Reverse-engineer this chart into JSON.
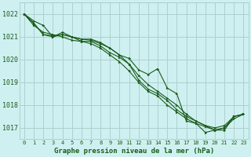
{
  "title": "Graphe pression niveau de la mer (hPa)",
  "bg_color": "#cff0f0",
  "grid_color": "#aed0d0",
  "line_color": "#1a5c1a",
  "xlim": [
    -0.5,
    23.5
  ],
  "ylim": [
    1016.5,
    1022.5
  ],
  "yticks": [
    1017,
    1018,
    1019,
    1020,
    1021,
    1022
  ],
  "xticks": [
    0,
    1,
    2,
    3,
    4,
    5,
    6,
    7,
    8,
    9,
    10,
    11,
    12,
    13,
    14,
    15,
    16,
    17,
    18,
    19,
    20,
    21,
    22,
    23
  ],
  "series": [
    [
      1022.0,
      1021.7,
      1021.5,
      1021.0,
      1021.1,
      1021.0,
      1020.9,
      1020.85,
      1020.7,
      1020.5,
      1020.2,
      1020.05,
      1019.55,
      1019.35,
      1019.6,
      1018.75,
      1018.5,
      1017.3,
      1017.2,
      1017.05,
      1016.9,
      1016.9,
      1017.5,
      1017.6
    ],
    [
      1022.0,
      1021.6,
      1021.1,
      1021.0,
      1021.2,
      1021.0,
      1020.9,
      1020.9,
      1020.75,
      1020.5,
      1020.2,
      1019.8,
      1019.1,
      1018.7,
      1018.5,
      1018.2,
      1017.8,
      1017.5,
      1017.3,
      1017.1,
      1017.0,
      1017.1,
      1017.5,
      1017.6
    ],
    [
      1022.0,
      1021.5,
      1021.2,
      1021.1,
      1021.0,
      1020.85,
      1020.8,
      1020.7,
      1020.5,
      1020.2,
      1019.9,
      1019.5,
      1019.0,
      1018.6,
      1018.4,
      1018.0,
      1017.7,
      1017.4,
      1017.2,
      1016.8,
      1016.9,
      1017.0,
      1017.4,
      1017.6
    ],
    [
      1022.0,
      1021.6,
      1021.1,
      1021.05,
      1021.1,
      1021.0,
      1020.8,
      1020.8,
      1020.6,
      1020.3,
      1020.1,
      1019.8,
      1019.3,
      1018.9,
      1018.6,
      1018.3,
      1018.0,
      1017.6,
      1017.3,
      1017.1,
      1016.9,
      1017.0,
      1017.5,
      1017.6
    ]
  ]
}
